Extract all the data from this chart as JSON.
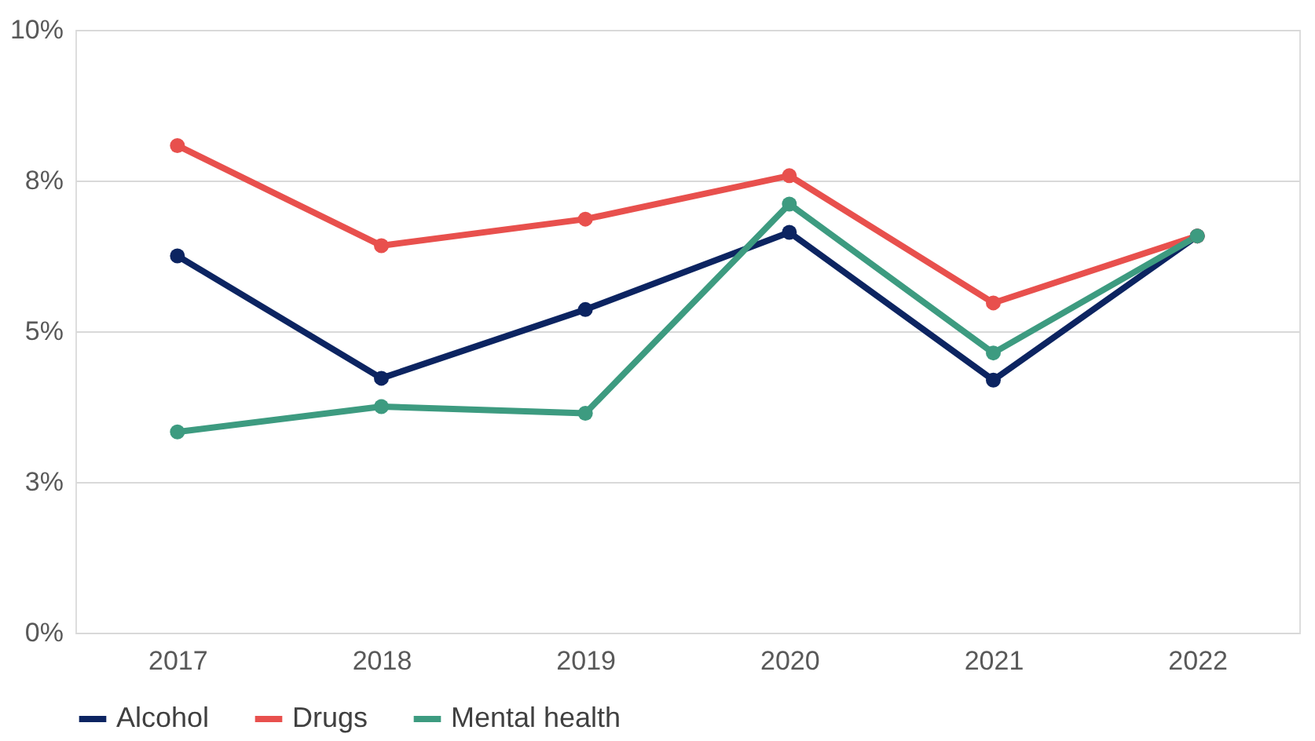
{
  "chart_data": {
    "type": "line",
    "categories": [
      "2017",
      "2018",
      "2019",
      "2020",
      "2021",
      "2022"
    ],
    "series": [
      {
        "name": "Alcohol",
        "color": "#0c2461",
        "values": [
          6.25,
          4.22,
          5.36,
          6.64,
          4.19,
          6.58
        ]
      },
      {
        "name": "Drugs",
        "color": "#e8504d",
        "values": [
          8.08,
          6.42,
          6.86,
          7.58,
          5.47,
          6.58
        ]
      },
      {
        "name": "Mental health",
        "color": "#3d9b80",
        "values": [
          3.33,
          3.75,
          3.64,
          7.11,
          4.64,
          6.58
        ]
      }
    ],
    "ylim": [
      0,
      10
    ],
    "yticks": [
      {
        "value": 0,
        "label": "0%"
      },
      {
        "value": 2.5,
        "label": "3%"
      },
      {
        "value": 5,
        "label": "5%"
      },
      {
        "value": 7.5,
        "label": "8%"
      },
      {
        "value": 10,
        "label": "10%"
      }
    ],
    "grid": "y",
    "legend": "bottom",
    "marker": "circle",
    "line_style": "solid"
  }
}
